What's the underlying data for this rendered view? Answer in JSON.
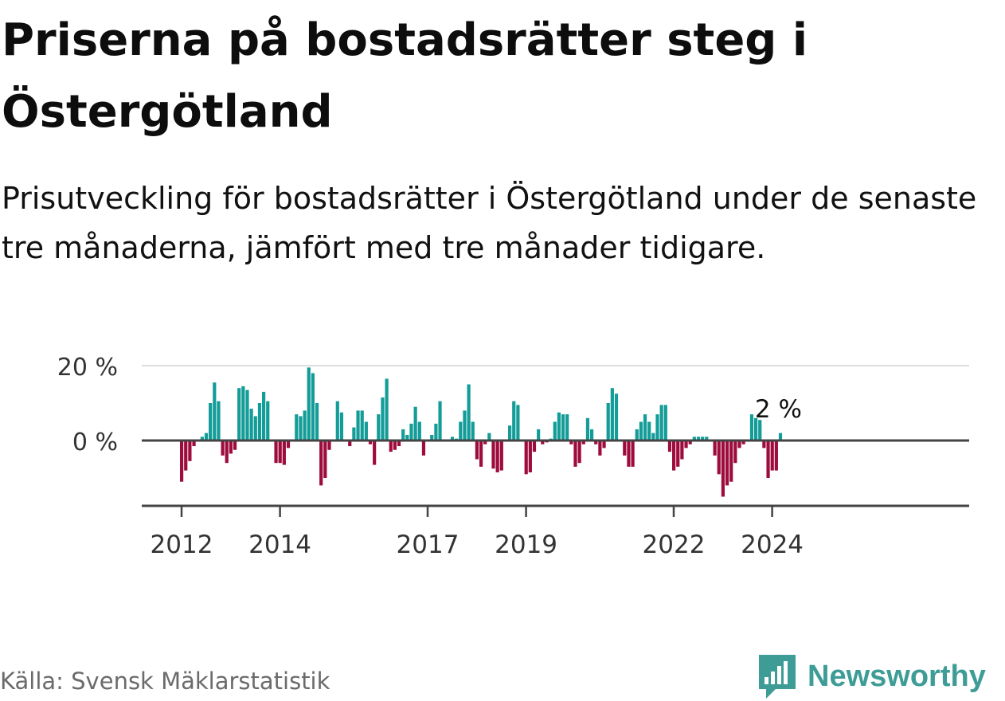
{
  "title": "Priserna på bostadsrätter steg i Östergötland",
  "subtitle": "Prisutveckling för bostadsrätter i Östergötland under de senaste tre månaderna, jämfört med tre månader tidigare.",
  "source": "Källa: Svensk Mäklarstatistik",
  "brand": {
    "name": "Newsworthy",
    "logo_icon": "bar-chart-speech-bubble-icon"
  },
  "colors": {
    "positive": "#139c98",
    "negative": "#9d0c3d",
    "axis": "#444444",
    "grid": "#dddddd",
    "brand": "#3e9c96"
  },
  "chart_data": {
    "type": "bar",
    "title": "Priserna på bostadsrätter steg i Östergötland",
    "xlabel": "",
    "ylabel": "",
    "ylim": [
      -17,
      20
    ],
    "yticks": [
      {
        "value": 0,
        "label": "0 %"
      },
      {
        "value": 20,
        "label": "20 %"
      }
    ],
    "xticks": [
      {
        "index": 0,
        "label": "2012"
      },
      {
        "index": 24,
        "label": "2014"
      },
      {
        "index": 60,
        "label": "2017"
      },
      {
        "index": 84,
        "label": "2019"
      },
      {
        "index": 120,
        "label": "2022"
      },
      {
        "index": 144,
        "label": "2024"
      }
    ],
    "first_period": "2012-01",
    "last_value_label": "2 %",
    "values": [
      -11,
      -8,
      -5.5,
      -1.5,
      0,
      1,
      2,
      10,
      15.5,
      10.5,
      -4,
      -6,
      -3.5,
      -2.5,
      14,
      14.5,
      13.5,
      8.5,
      6.5,
      10,
      13,
      10.5,
      0,
      -6,
      -6,
      -6.5,
      -2,
      0,
      7,
      6.5,
      8,
      19.5,
      18,
      10,
      -12,
      -10,
      -2.5,
      0,
      10.5,
      7.5,
      0,
      -1.5,
      3.5,
      8,
      8,
      5,
      -1,
      -6.5,
      7,
      11.5,
      16.5,
      -3,
      -2.5,
      -1.5,
      3,
      1.5,
      4.5,
      9,
      5,
      -4,
      0,
      1.5,
      4.5,
      10.5,
      0,
      0,
      1,
      0.5,
      5,
      8,
      15,
      5,
      -5,
      -7,
      -1,
      2,
      -7.5,
      -8.5,
      -8,
      0,
      4,
      10.5,
      9.5,
      0,
      -9,
      -8.5,
      -3,
      3,
      -1,
      -0.5,
      0.5,
      5,
      7.5,
      7,
      7,
      -1,
      -7,
      -6,
      -1,
      6,
      3,
      -1,
      -4,
      -2,
      10,
      14,
      12.5,
      0,
      -4,
      -7,
      -7,
      3,
      5,
      7,
      5,
      2,
      7,
      9.5,
      9.5,
      -3,
      -8,
      -7,
      -5,
      -2,
      -1,
      1,
      1,
      1,
      1,
      0,
      -4,
      -9,
      -15,
      -12,
      -11,
      -6,
      -2,
      -1,
      0,
      7,
      6,
      5.5,
      -2,
      -10,
      -8,
      -8,
      2
    ]
  }
}
